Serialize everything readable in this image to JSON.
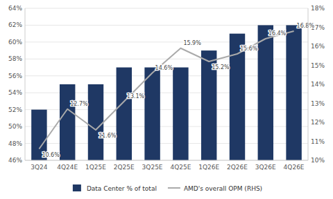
{
  "chart_data": {
    "type": "bar",
    "categories": [
      "3Q24",
      "4Q24E",
      "1Q25E",
      "2Q25E",
      "3Q25E",
      "4Q25E",
      "1Q26E",
      "2Q26E",
      "3Q26E",
      "4Q26E"
    ],
    "series": [
      {
        "name": "Data Center % of total",
        "type": "bar",
        "color": "#1F3864",
        "values": [
          52,
          55,
          55,
          57,
          57,
          57,
          59,
          61,
          62,
          62
        ]
      },
      {
        "name": "AMD's overall OPM (RHS)",
        "type": "line",
        "axis": "y2",
        "color": "#AAAAAA",
        "values": [
          10.6,
          12.7,
          11.6,
          13.1,
          14.6,
          15.9,
          15.2,
          15.6,
          16.4,
          16.8
        ],
        "data_labels": true,
        "value_labels": [
          "10.6%",
          "12.7%",
          "11.6%",
          "13.1%",
          "14.6%",
          "15.9%",
          "15.2%",
          "15.6%",
          "16.4%",
          "16.8%"
        ]
      }
    ],
    "ylim": [
      46,
      64
    ],
    "yticks": [
      {
        "value": 46,
        "label": "46%"
      },
      {
        "value": 48,
        "label": "48%"
      },
      {
        "value": 50,
        "label": "50%"
      },
      {
        "value": 52,
        "label": "52%"
      },
      {
        "value": 54,
        "label": "54%"
      },
      {
        "value": 56,
        "label": "56%"
      },
      {
        "value": 58,
        "label": "58%"
      },
      {
        "value": 60,
        "label": "60%"
      },
      {
        "value": 62,
        "label": "62%"
      },
      {
        "value": 64,
        "label": "64%"
      }
    ],
    "y2lim": [
      10,
      18
    ],
    "y2ticks": [
      {
        "value": 10,
        "label": "10%"
      },
      {
        "value": 11,
        "label": "11%"
      },
      {
        "value": 12,
        "label": "12%"
      },
      {
        "value": 13,
        "label": "13%"
      },
      {
        "value": 14,
        "label": "14%"
      },
      {
        "value": 15,
        "label": "15%"
      },
      {
        "value": 16,
        "label": "16%"
      },
      {
        "value": 17,
        "label": "17%"
      },
      {
        "value": 18,
        "label": "18%"
      }
    ],
    "grid": true,
    "legend": "bottom"
  }
}
